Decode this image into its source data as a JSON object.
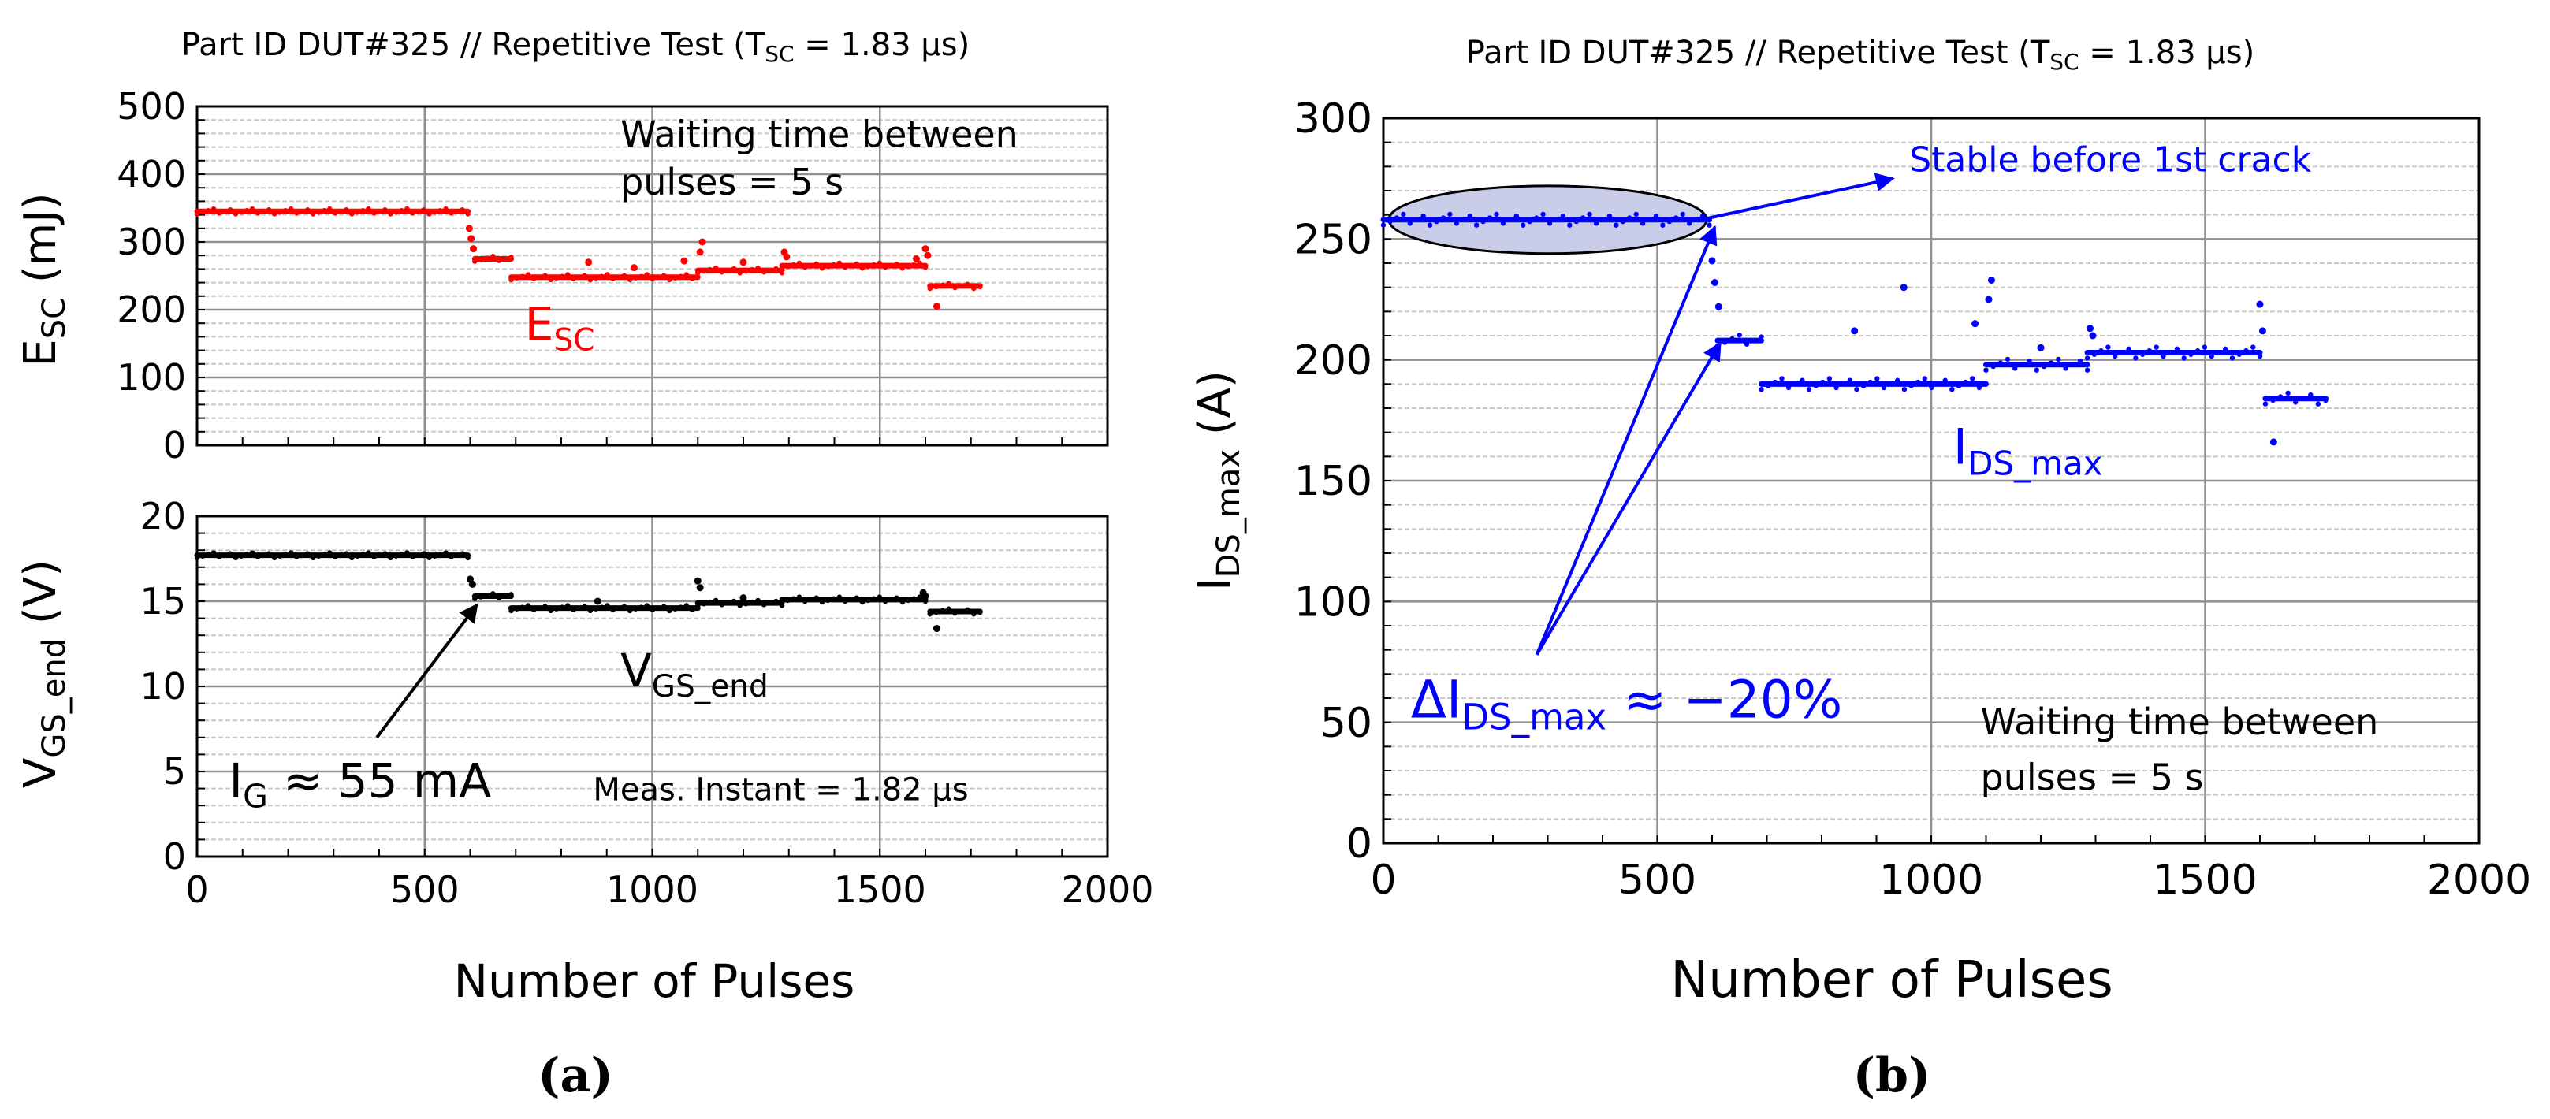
{
  "chart_data": [
    {
      "id": "a_top",
      "type": "scatter",
      "title": "Part ID DUT#325 // Repetitive Test (T",
      "title_sub": "SC",
      "title_tail": " = 1.83 µs)",
      "xlabel": "Number of Pulses",
      "ylabel": "E",
      "ylabel_sub": "SC",
      "ylabel_tail": " (mJ)",
      "xlim": [
        0,
        2000
      ],
      "ylim": [
        0,
        500
      ],
      "x_ticks": [
        0,
        500,
        1000,
        1500,
        2000
      ],
      "x_tick_labels": [
        "0",
        "500",
        "1000",
        "1500",
        "2000"
      ],
      "y_ticks": [
        0,
        100,
        200,
        300,
        400,
        500
      ],
      "y_tick_labels": [
        "0",
        "100",
        "200",
        "300",
        "400",
        "500"
      ],
      "grid": true,
      "series": [
        {
          "name": "E_SC",
          "color": "#ff0000",
          "segments": [
            {
              "x": [
                0,
                595
              ],
              "y": 345
            },
            {
              "x": [
                610,
                690
              ],
              "y": 275
            },
            {
              "x": [
                690,
                1100
              ],
              "y": 248
            },
            {
              "x": [
                1100,
                1285
              ],
              "y": 258
            },
            {
              "x": [
                1285,
                1600
              ],
              "y": 265
            },
            {
              "x": [
                1610,
                1720
              ],
              "y": 235
            }
          ],
          "points": [
            {
              "x": 598,
              "y": 320
            },
            {
              "x": 602,
              "y": 305
            },
            {
              "x": 607,
              "y": 290
            },
            {
              "x": 860,
              "y": 270
            },
            {
              "x": 960,
              "y": 262
            },
            {
              "x": 1070,
              "y": 272
            },
            {
              "x": 1110,
              "y": 300
            },
            {
              "x": 1105,
              "y": 285
            },
            {
              "x": 1200,
              "y": 270
            },
            {
              "x": 1290,
              "y": 285
            },
            {
              "x": 1295,
              "y": 278
            },
            {
              "x": 1580,
              "y": 275
            },
            {
              "x": 1600,
              "y": 290
            },
            {
              "x": 1605,
              "y": 280
            },
            {
              "x": 1625,
              "y": 205
            }
          ]
        }
      ],
      "annotations": [
        {
          "text": "Waiting time between",
          "x": 930,
          "y": 440
        },
        {
          "text": "pulses = 5 s",
          "x": 930,
          "y": 370
        }
      ],
      "series_label": {
        "text": "E",
        "sub": "SC",
        "x": 720,
        "y": 155,
        "color": "#ff0000"
      }
    },
    {
      "id": "a_bottom",
      "type": "scatter",
      "xlabel": "Number of Pulses",
      "ylabel": "V",
      "ylabel_sub": "GS_end",
      "ylabel_tail": " (V)",
      "xlim": [
        0,
        2000
      ],
      "ylim": [
        0,
        20
      ],
      "x_ticks": [
        0,
        500,
        1000,
        1500,
        2000
      ],
      "x_tick_labels": [
        "0",
        "500",
        "1000",
        "1500",
        "2000"
      ],
      "y_ticks": [
        0,
        5,
        10,
        15,
        20
      ],
      "y_tick_labels": [
        "0",
        "5",
        "10",
        "15",
        "20"
      ],
      "grid": true,
      "series": [
        {
          "name": "V_GS_end",
          "color": "#000000",
          "segments": [
            {
              "x": [
                0,
                595
              ],
              "y": 17.7
            },
            {
              "x": [
                610,
                690
              ],
              "y": 15.3
            },
            {
              "x": [
                690,
                1100
              ],
              "y": 14.6
            },
            {
              "x": [
                1100,
                1285
              ],
              "y": 14.9
            },
            {
              "x": [
                1285,
                1600
              ],
              "y": 15.1
            },
            {
              "x": [
                1610,
                1720
              ],
              "y": 14.4
            }
          ],
          "points": [
            {
              "x": 600,
              "y": 16.3
            },
            {
              "x": 605,
              "y": 16.0
            },
            {
              "x": 880,
              "y": 15.0
            },
            {
              "x": 1100,
              "y": 16.2
            },
            {
              "x": 1105,
              "y": 15.8
            },
            {
              "x": 1200,
              "y": 15.2
            },
            {
              "x": 1595,
              "y": 15.5
            },
            {
              "x": 1600,
              "y": 15.3
            },
            {
              "x": 1625,
              "y": 13.4
            }
          ]
        }
      ],
      "annotations": [
        {
          "text": "Meas. Instant = 1.82 µs",
          "x": 870,
          "y": 3.3
        }
      ],
      "series_label": {
        "text": "V",
        "sub": "GS_end",
        "x": 930,
        "y": 10.0,
        "color": "#000000"
      },
      "arrow_label": {
        "text": "I",
        "sub": "G",
        "tail": " ≈ 55 mA",
        "x": 70,
        "y": 3.5
      },
      "arrow": {
        "from": [
          395,
          7.0
        ],
        "to": [
          615,
          14.8
        ]
      }
    },
    {
      "id": "b",
      "type": "scatter",
      "title": "Part ID DUT#325 // Repetitive Test (T",
      "title_sub": "SC",
      "title_tail": " = 1.83 µs)",
      "xlabel": "Number of Pulses",
      "ylabel": "I",
      "ylabel_sub": "DS_max",
      "ylabel_tail": " (A)",
      "xlim": [
        0,
        2000
      ],
      "ylim": [
        0,
        300
      ],
      "x_ticks": [
        0,
        500,
        1000,
        1500,
        2000
      ],
      "x_tick_labels": [
        "0",
        "500",
        "1000",
        "1500",
        "2000"
      ],
      "y_ticks": [
        0,
        50,
        100,
        150,
        200,
        250,
        300
      ],
      "y_tick_labels": [
        "0",
        "50",
        "100",
        "150",
        "200",
        "250",
        "300"
      ],
      "grid": true,
      "series": [
        {
          "name": "I_DS_max",
          "color": "#0000ff",
          "segments": [
            {
              "x": [
                0,
                595
              ],
              "y": 258
            },
            {
              "x": [
                610,
                690
              ],
              "y": 208
            },
            {
              "x": [
                690,
                1100
              ],
              "y": 190
            },
            {
              "x": [
                1100,
                1285
              ],
              "y": 198
            },
            {
              "x": [
                1285,
                1600
              ],
              "y": 203
            },
            {
              "x": [
                1610,
                1720
              ],
              "y": 184
            }
          ],
          "points": [
            {
              "x": 600,
              "y": 241
            },
            {
              "x": 605,
              "y": 232
            },
            {
              "x": 612,
              "y": 222
            },
            {
              "x": 860,
              "y": 212
            },
            {
              "x": 950,
              "y": 230
            },
            {
              "x": 1080,
              "y": 215
            },
            {
              "x": 1110,
              "y": 233
            },
            {
              "x": 1105,
              "y": 225
            },
            {
              "x": 1200,
              "y": 205
            },
            {
              "x": 1290,
              "y": 213
            },
            {
              "x": 1295,
              "y": 210
            },
            {
              "x": 1600,
              "y": 223
            },
            {
              "x": 1605,
              "y": 212
            },
            {
              "x": 1625,
              "y": 166
            }
          ]
        }
      ],
      "ellipse": {
        "cx": 300,
        "cy": 258,
        "rx": 290,
        "ry": 14
      },
      "annotations_blue": [
        {
          "text": "Stable before 1st crack",
          "x": 960,
          "y": 278
        }
      ],
      "annotations": [
        {
          "text": "Waiting time between",
          "x": 1090,
          "y": 45
        },
        {
          "text": "pulses = 5 s",
          "x": 1090,
          "y": 22
        }
      ],
      "series_label": {
        "text": "I",
        "sub": "DS_max",
        "x": 1040,
        "y": 157,
        "color": "#0000ff"
      },
      "delta_label": {
        "text": "ΔI",
        "sub": "DS_max",
        "tail": " ≈ −20%",
        "x": 50,
        "y": 52
      },
      "arrows": [
        {
          "from": [
            580,
            258
          ],
          "to": [
            930,
            275
          ]
        },
        {
          "from": [
            280,
            78
          ],
          "to": [
            605,
            255
          ]
        },
        {
          "from": [
            280,
            78
          ],
          "to": [
            615,
            207
          ]
        }
      ]
    }
  ],
  "panel_labels": {
    "a": "(a)",
    "b": "(b)"
  }
}
